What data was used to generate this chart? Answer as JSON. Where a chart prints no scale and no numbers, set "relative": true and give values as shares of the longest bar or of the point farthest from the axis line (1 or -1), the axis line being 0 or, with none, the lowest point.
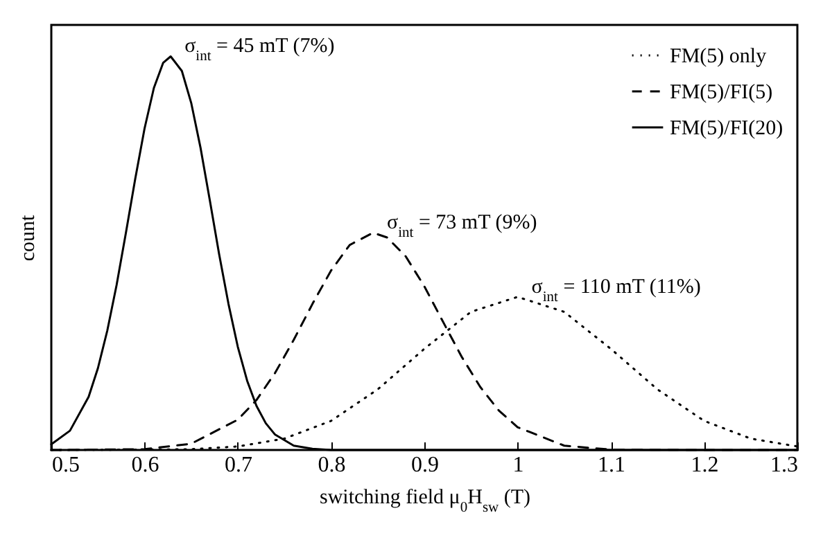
{
  "chart_data": {
    "type": "line",
    "relative": true,
    "xlabel": "switching field μ$_{0}$H$_{sw}$ (T)",
    "ylabel": "count",
    "xlim": [
      0.5,
      1.3
    ],
    "xticks": [
      0.5,
      0.6,
      0.7,
      0.8,
      0.9,
      1,
      1.1,
      1.2,
      1.3
    ],
    "tick_labels": "x",
    "grid": false,
    "legend": "top right",
    "marker": "none",
    "series": [
      {
        "name": "FM(5) only",
        "color": "#000000",
        "line_style": "dotted",
        "x": [
          0.5,
          0.6,
          0.65,
          0.7,
          0.75,
          0.8,
          0.85,
          0.9,
          0.95,
          1.0,
          1.05,
          1.1,
          1.15,
          1.2,
          1.25,
          1.3
        ],
        "values": [
          0,
          0.001,
          0.002,
          0.009,
          0.029,
          0.074,
          0.154,
          0.257,
          0.351,
          0.389,
          0.351,
          0.257,
          0.154,
          0.074,
          0.029,
          0.009
        ]
      },
      {
        "name": "FM(5)/FI(5)",
        "color": "#000000",
        "line_style": "dashed",
        "x": [
          0.5,
          0.6,
          0.65,
          0.7,
          0.72,
          0.74,
          0.76,
          0.78,
          0.8,
          0.82,
          0.845,
          0.86,
          0.88,
          0.9,
          0.92,
          0.94,
          0.96,
          0.98,
          1.0,
          1.05,
          1.1,
          1.2,
          1.3
        ],
        "values": [
          0,
          0.002,
          0.016,
          0.077,
          0.127,
          0.196,
          0.28,
          0.371,
          0.456,
          0.521,
          0.552,
          0.54,
          0.492,
          0.416,
          0.326,
          0.237,
          0.16,
          0.1,
          0.058,
          0.011,
          0.001,
          0,
          0
        ]
      },
      {
        "name": "FM(5)/FI(20)",
        "color": "#000000",
        "line_style": "solid",
        "x": [
          0.5,
          0.52,
          0.54,
          0.55,
          0.56,
          0.57,
          0.58,
          0.59,
          0.6,
          0.61,
          0.62,
          0.628,
          0.64,
          0.65,
          0.66,
          0.67,
          0.68,
          0.69,
          0.7,
          0.71,
          0.72,
          0.73,
          0.74,
          0.76,
          0.78,
          0.8,
          0.9,
          1.0,
          1.1,
          1.2,
          1.3
        ],
        "values": [
          0.0145,
          0.049,
          0.135,
          0.208,
          0.303,
          0.419,
          0.552,
          0.689,
          0.817,
          0.92,
          0.984,
          1,
          0.963,
          0.882,
          0.768,
          0.634,
          0.497,
          0.371,
          0.262,
          0.176,
          0.112,
          0.068,
          0.039,
          0.011,
          0.003,
          0,
          0,
          0,
          0,
          0,
          0
        ]
      }
    ],
    "annotations": [
      {
        "text": "σ$_{int}$ = 45 mT (7%)",
        "x": 0.628,
        "y": 1
      },
      {
        "text": "σ$_{int}$ = 73 mT (9%)",
        "x": 0.845,
        "y": 0.552
      },
      {
        "text": "σ$_{int}$ = 110 mT (11%)",
        "x": 1.0,
        "y": 0.389
      }
    ]
  }
}
